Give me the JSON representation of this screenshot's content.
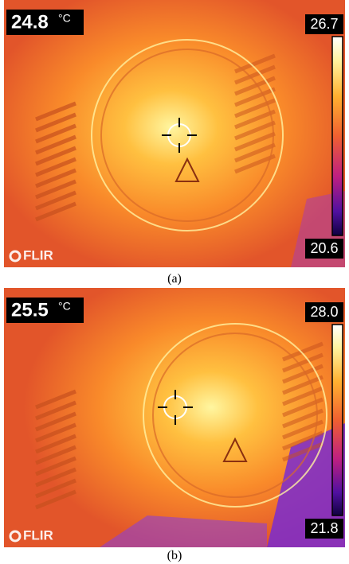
{
  "panels": [
    {
      "spot_temperature": "24.8",
      "unit": "°C",
      "scale_max": "26.7",
      "scale_min": "20.6",
      "logo": "FLIR",
      "caption": "(a)"
    },
    {
      "spot_temperature": "25.5",
      "unit": "°C",
      "scale_max": "28.0",
      "scale_min": "21.8",
      "logo": "FLIR",
      "caption": "(b)"
    }
  ]
}
